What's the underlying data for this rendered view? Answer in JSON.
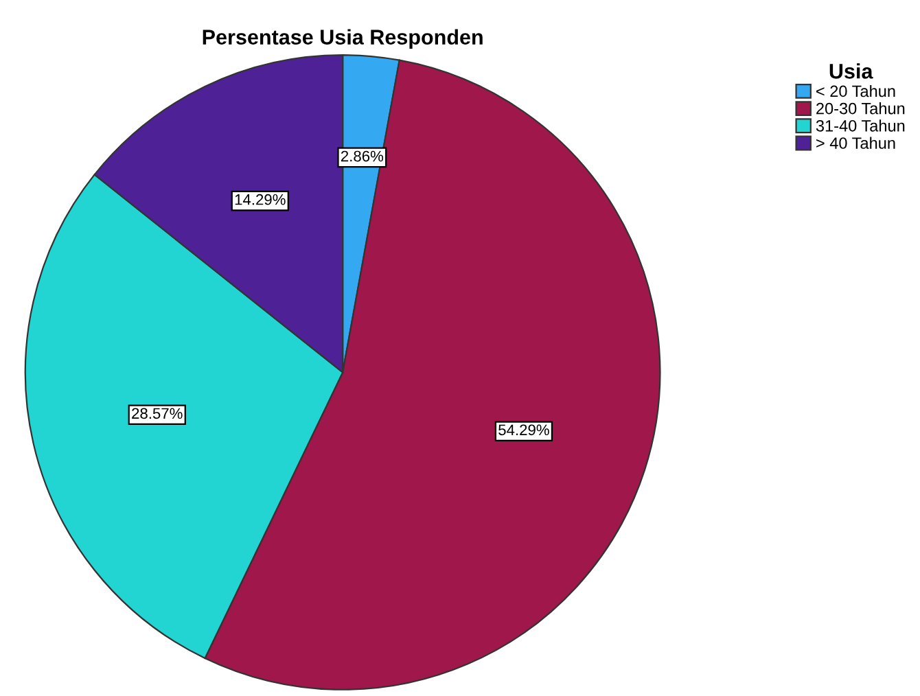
{
  "chart_data": {
    "type": "pie",
    "title": "Persentase Usia Responden",
    "legend_title": "Usia",
    "legend": "top right",
    "value_labels": [
      "2.86%",
      "54.29%",
      "28.57%",
      "14.29%"
    ],
    "categories": [
      "< 20 Tahun",
      "20-30 Tahun",
      "31-40 Tahun",
      "> 40 Tahun"
    ],
    "values": [
      2.86,
      54.29,
      28.57,
      14.29
    ],
    "colors": [
      "#35a8f2",
      "#a0174b",
      "#22d5d2",
      "#4e2296"
    ]
  }
}
